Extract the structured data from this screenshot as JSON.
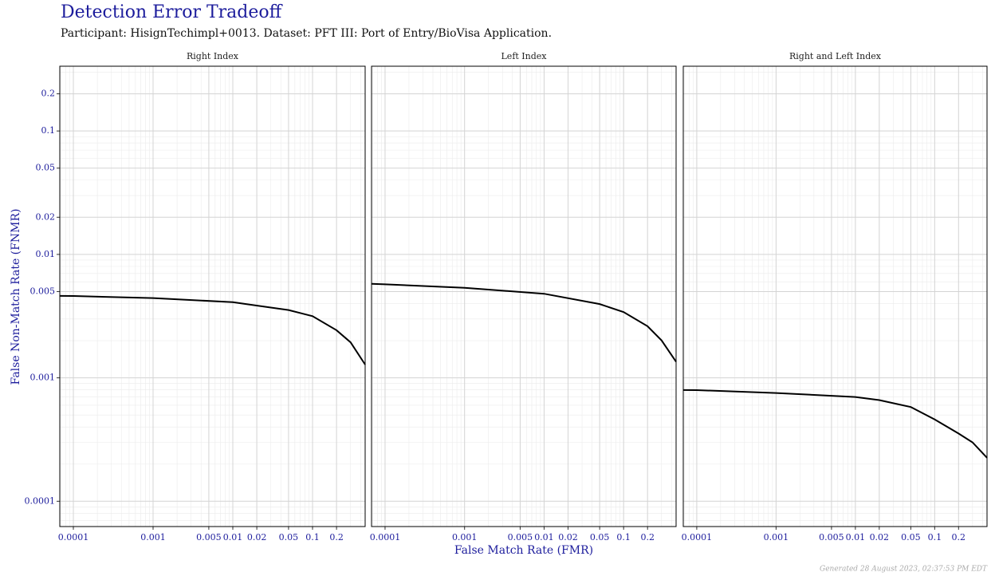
{
  "title": "Detection Error Tradeoff",
  "subtitle": "Participant: HisignTechimpl+0013. Dataset: PFT III: Port of Entry/BioVisa Application.",
  "x_label": "False Match Rate (FMR)",
  "y_label": "False Non-Match Rate (FNMR)",
  "footnote": "Generated 28 August 2023, 02:37:53 PM EDT",
  "chart_data": [
    {
      "type": "line",
      "title": "Right Index",
      "log_x": true,
      "log_y": true,
      "grid": true,
      "color": "#000000",
      "x": [
        6.76e-05,
        0.0001,
        0.001,
        0.01,
        0.05,
        0.1,
        0.2,
        0.3,
        0.457
      ],
      "values": [
        0.00461,
        0.0046,
        0.00443,
        0.0041,
        0.00354,
        0.00316,
        0.00243,
        0.00194,
        0.00128
      ],
      "xlim": [
        6.76e-05,
        0.457
      ],
      "ylim": [
        6.24e-05,
        0.3347
      ],
      "xticks": [
        0.0001,
        0.001,
        0.005,
        0.01,
        0.02,
        0.05,
        0.1,
        0.2
      ],
      "yticks": [
        0.0001,
        0.001,
        0.005,
        0.01,
        0.02,
        0.05,
        0.1,
        0.2
      ]
    },
    {
      "type": "line",
      "title": "Left Index",
      "log_x": true,
      "log_y": true,
      "grid": true,
      "color": "#000000",
      "x": [
        6.76e-05,
        0.0001,
        0.001,
        0.01,
        0.05,
        0.1,
        0.2,
        0.3,
        0.457
      ],
      "values": [
        0.00578,
        0.00572,
        0.00536,
        0.0048,
        0.00396,
        0.00341,
        0.00262,
        0.00201,
        0.00135
      ],
      "xlim": [
        6.76e-05,
        0.457
      ],
      "ylim": [
        6.24e-05,
        0.3347
      ],
      "xticks": [
        0.0001,
        0.001,
        0.005,
        0.01,
        0.02,
        0.05,
        0.1,
        0.2
      ],
      "yticks": [
        0.0001,
        0.001,
        0.005,
        0.01,
        0.02,
        0.05,
        0.1,
        0.2
      ]
    },
    {
      "type": "line",
      "title": "Right and Left Index",
      "log_x": true,
      "log_y": true,
      "grid": true,
      "color": "#000000",
      "x": [
        6.76e-05,
        0.0001,
        0.001,
        0.01,
        0.02,
        0.05,
        0.1,
        0.2,
        0.3,
        0.457
      ],
      "values": [
        0.000797,
        0.000795,
        0.000754,
        0.000699,
        0.00066,
        0.00058,
        0.00046,
        0.000354,
        0.0003,
        0.000225
      ],
      "xlim": [
        6.76e-05,
        0.457
      ],
      "ylim": [
        6.24e-05,
        0.3347
      ],
      "xticks": [
        0.0001,
        0.001,
        0.005,
        0.01,
        0.02,
        0.05,
        0.1,
        0.2
      ],
      "yticks": [
        0.0001,
        0.001,
        0.005,
        0.01,
        0.02,
        0.05,
        0.1,
        0.2
      ]
    }
  ]
}
